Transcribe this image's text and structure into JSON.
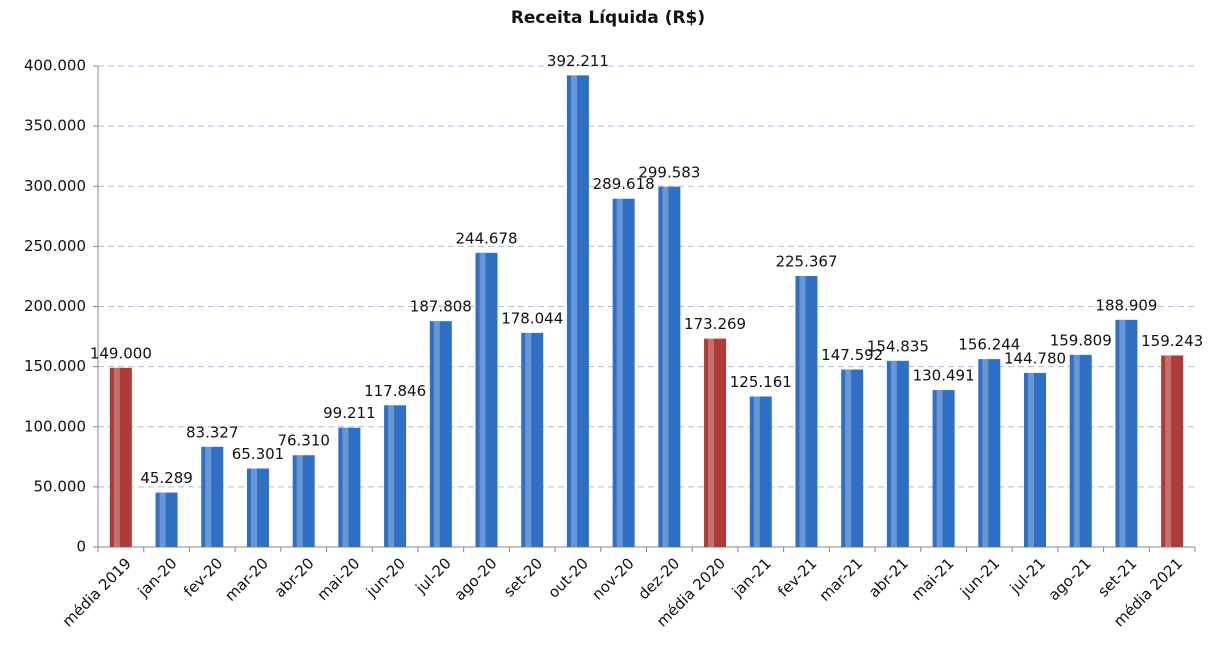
{
  "chart_data": {
    "type": "bar",
    "title": "Receita Líquida (R$)",
    "categories": [
      "média 2019",
      "jan-20",
      "fev-20",
      "mar-20",
      "abr-20",
      "mai-20",
      "jun-20",
      "jul-20",
      "ago-20",
      "set-20",
      "out-20",
      "nov-20",
      "dez-20",
      "média 2020",
      "jan-21",
      "fev-21",
      "mar-21",
      "abr-21",
      "mai-21",
      "jun-21",
      "jul-21",
      "ago-21",
      "set-21",
      "média 2021"
    ],
    "values": [
      149000,
      45289,
      83327,
      65301,
      76310,
      99211,
      117846,
      187808,
      244678,
      178044,
      392211,
      289618,
      299583,
      173269,
      125161,
      225367,
      147592,
      154835,
      130491,
      156244,
      144780,
      159809,
      188909,
      159243
    ],
    "value_labels": [
      "149.000",
      "45.289",
      "83.327",
      "65.301",
      "76.310",
      "99.211",
      "117.846",
      "187.808",
      "244.678",
      "178.044",
      "392.211",
      "289.618",
      "299.583",
      "173.269",
      "125.161",
      "225.367",
      "147.592",
      "154.835",
      "130.491",
      "156.244",
      "144.780",
      "159.809",
      "188.909",
      "159.243"
    ],
    "colors": [
      "#b03a36",
      "#2f6fc4",
      "#2f6fc4",
      "#2f6fc4",
      "#2f6fc4",
      "#2f6fc4",
      "#2f6fc4",
      "#2f6fc4",
      "#2f6fc4",
      "#2f6fc4",
      "#2f6fc4",
      "#2f6fc4",
      "#2f6fc4",
      "#b03a36",
      "#2f6fc4",
      "#2f6fc4",
      "#2f6fc4",
      "#2f6fc4",
      "#2f6fc4",
      "#2f6fc4",
      "#2f6fc4",
      "#2f6fc4",
      "#2f6fc4",
      "#b03a36"
    ],
    "ylim": [
      0,
      400000
    ],
    "yticks": [
      0,
      {
        "value": 50000,
        "label": "50.000"
      },
      {
        "value": 100000,
        "label": "100.000"
      },
      {
        "value": 150000,
        "label": "150.000"
      },
      {
        "value": 200000,
        "label": "200.000"
      },
      {
        "value": 250000,
        "label": "250.000"
      },
      {
        "value": 300000,
        "label": "300.000"
      },
      {
        "value": 350000,
        "label": "350.000"
      },
      {
        "value": 400000,
        "label": "400.000"
      }
    ],
    "grid": true
  }
}
